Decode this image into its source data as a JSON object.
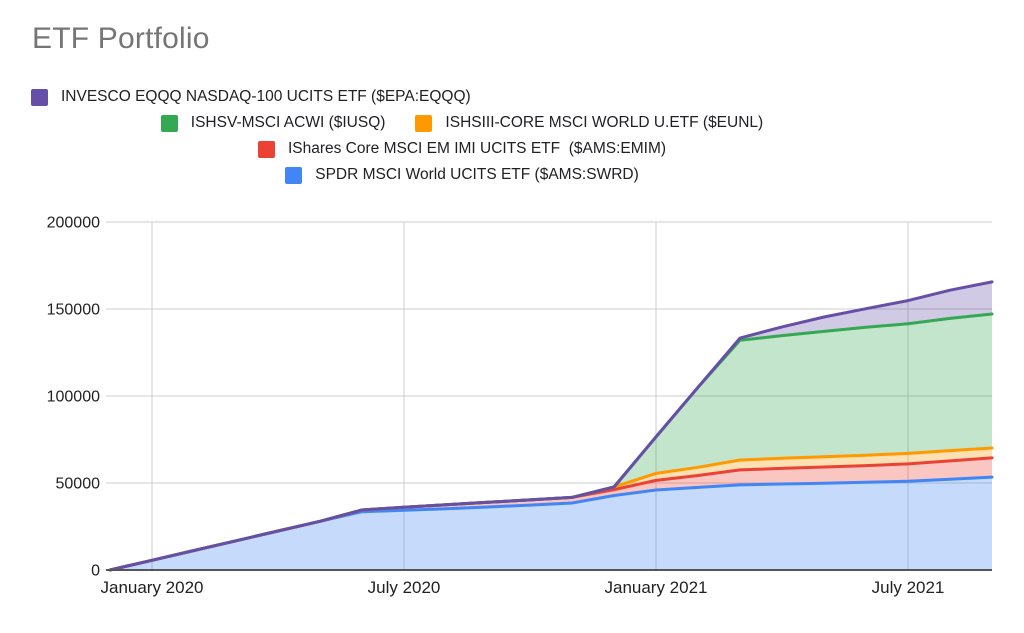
{
  "title": "ETF Portfolio",
  "legend": {
    "items": [
      {
        "label": "INVESCO EQQQ NASDAQ-100 UCITS ETF ($EPA:EQQQ)",
        "color": "#674EA7"
      },
      {
        "label": "ISHSV-MSCI ACWI ($IUSQ)",
        "color": "#34A853"
      },
      {
        "label": "ISHSIII-CORE MSCI WORLD U.ETF ($EUNL)",
        "color": "#FF9900"
      },
      {
        "label": "IShares Core MSCI EM IMI UCITS ETF  ($AMS:EMIM)",
        "color": "#EA4335"
      },
      {
        "label": "SPDR MSCI World UCITS ETF ($AMS:SWRD)",
        "color": "#4285F4"
      }
    ]
  },
  "chart_data": {
    "type": "area",
    "stacked": true,
    "title": "ETF Portfolio",
    "x": [
      "Dec 2019",
      "Jan 2020",
      "Feb 2020",
      "Mar 2020",
      "Apr 2020",
      "May 2020",
      "Jun 2020",
      "Jul 2020",
      "Aug 2020",
      "Sep 2020",
      "Oct 2020",
      "Nov 2020",
      "Dec 2020",
      "Jan 2021",
      "Feb 2021",
      "Mar 2021",
      "Apr 2021",
      "May 2021",
      "Jun 2021",
      "Jul 2021",
      "Aug 2021",
      "Sep 2021"
    ],
    "x_axis_ticks": [
      {
        "label": "January 2020",
        "index": 1
      },
      {
        "label": "July 2020",
        "index": 7
      },
      {
        "label": "January 2021",
        "index": 13
      },
      {
        "label": "July 2021",
        "index": 19
      }
    ],
    "y_ticks": [
      0,
      50000,
      100000,
      150000,
      200000
    ],
    "y_tick_labels": [
      "0",
      "50000",
      "100000",
      "150000",
      "200000"
    ],
    "ylim": [
      0,
      200000
    ],
    "grid": true,
    "legend_position": "top",
    "series": [
      {
        "name": "SPDR MSCI World UCITS ETF ($AMS:SWRD)",
        "ticker": "$AMS:SWRD",
        "color": "#4285F4",
        "values": [
          0,
          5600,
          11200,
          16800,
          22400,
          28000,
          33500,
          34300,
          35200,
          36200,
          37300,
          38500,
          42800,
          46000,
          47500,
          48900,
          49400,
          49900,
          50400,
          51000,
          52200,
          53400
        ]
      },
      {
        "name": "IShares Core MSCI EM IMI UCITS ETF  ($AMS:EMIM)",
        "ticker": "$AMS:EMIM",
        "color": "#EA4335",
        "values": [
          0,
          0,
          0,
          0,
          0,
          0,
          1000,
          1800,
          2300,
          2700,
          3000,
          3200,
          3400,
          5500,
          6800,
          8600,
          9000,
          9300,
          9600,
          10000,
          10500,
          11000
        ]
      },
      {
        "name": "ISHSIII-CORE MSCI WORLD U.ETF ($EUNL)",
        "ticker": "$EUNL",
        "color": "#FF9900",
        "values": [
          0,
          0,
          0,
          0,
          0,
          0,
          0,
          0,
          0,
          0,
          0,
          0,
          1500,
          4000,
          4700,
          5700,
          5800,
          5900,
          6000,
          6000,
          5900,
          5700
        ]
      },
      {
        "name": "ISHSV-MSCI ACWI ($IUSQ)",
        "ticker": "$IUSQ",
        "color": "#34A853",
        "values": [
          0,
          0,
          0,
          0,
          0,
          0,
          0,
          0,
          0,
          0,
          0,
          0,
          0,
          21000,
          46000,
          68800,
          70500,
          72000,
          73500,
          74500,
          76000,
          77000
        ]
      },
      {
        "name": "INVESCO EQQQ NASDAQ-100 UCITS ETF ($EPA:EQQQ)",
        "ticker": "$EPA:EQQQ",
        "color": "#674EA7",
        "values": [
          0,
          0,
          0,
          0,
          0,
          0,
          0,
          0,
          0,
          0,
          0,
          0,
          0,
          0,
          0,
          1300,
          5000,
          8300,
          10700,
          13300,
          16200,
          18500
        ]
      }
    ]
  },
  "style_colors": {
    "gridline": "#cccccc",
    "axis_line": "#555555",
    "axis_text": "#222222",
    "title_text": "#757575",
    "fill_opacity": 0.3
  }
}
